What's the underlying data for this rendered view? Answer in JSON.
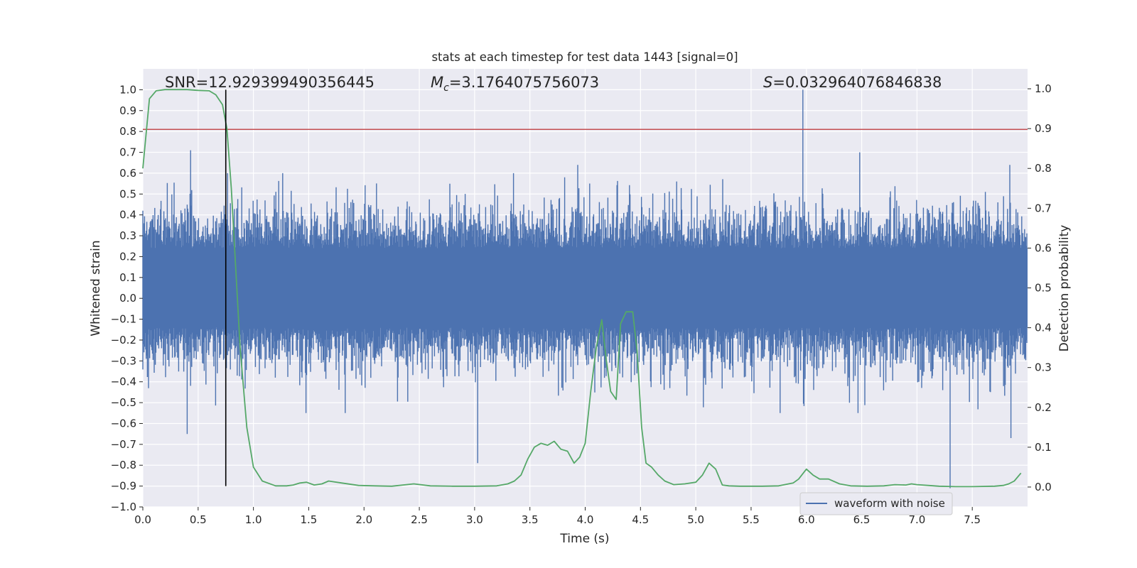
{
  "chart_data": {
    "type": "line",
    "title": "stats at each timestep for test data 1443 [signal=0]",
    "xlabel": "Time (s)",
    "ylabel_left": "Whitened strain",
    "ylabel_right": "Detection probability",
    "xlim": [
      0.0,
      8.0
    ],
    "ylim_left": [
      -1.0,
      1.1
    ],
    "ylim_right": [
      -0.05,
      1.05
    ],
    "x_ticks": [
      0.0,
      0.5,
      1.0,
      1.5,
      2.0,
      2.5,
      3.0,
      3.5,
      4.0,
      4.5,
      5.0,
      5.5,
      6.0,
      6.5,
      7.0,
      7.5
    ],
    "x_tick_labels": [
      "0.0",
      "0.5",
      "1.0",
      "1.5",
      "2.0",
      "2.5",
      "3.0",
      "3.5",
      "4.0",
      "4.5",
      "5.0",
      "5.5",
      "6.0",
      "6.5",
      "7.0",
      "7.5"
    ],
    "y_left_ticks": [
      1.0,
      0.9,
      0.8,
      0.7,
      0.6,
      0.5,
      0.4,
      0.3,
      0.2,
      0.1,
      0.0,
      -0.1,
      -0.2,
      -0.3,
      -0.4,
      -0.5,
      -0.6,
      -0.7,
      -0.8,
      -0.9,
      -1.0
    ],
    "y_left_tick_labels": [
      "1.0",
      "0.9",
      "0.8",
      "0.7",
      "0.6",
      "0.5",
      "0.4",
      "0.3",
      "0.2",
      "0.1",
      "0.0",
      "−0.1",
      "−0.2",
      "−0.3",
      "−0.4",
      "−0.5",
      "−0.6",
      "−0.7",
      "−0.8",
      "−0.9",
      "−1.0"
    ],
    "y_right_ticks": [
      1.0,
      0.9,
      0.8,
      0.7,
      0.6,
      0.5,
      0.4,
      0.3,
      0.2,
      0.1,
      0.0
    ],
    "y_right_tick_labels": [
      "1.0",
      "0.9",
      "0.8",
      "0.7",
      "0.6",
      "0.5",
      "0.4",
      "0.3",
      "0.2",
      "0.1",
      "0.0"
    ],
    "grid": true,
    "legend_position": "lower-right",
    "annotations": {
      "snr": "SNR=12.929399490356445",
      "mc_symbol": "M",
      "mc_subscript": "c",
      "mc_value": "=3.1764075756073",
      "s_symbol": "S",
      "s_value": "=0.032964076846838"
    },
    "series": [
      {
        "name": "waveform with noise",
        "axis": "left",
        "color": "#4c72b0",
        "description_envelope": {
          "core_band": [
            -0.14,
            0.24
          ],
          "typical_peak": [
            -0.55,
            0.6
          ]
        },
        "notable_spikes": [
          {
            "x": 0.43,
            "y": 0.71
          },
          {
            "x": 0.4,
            "y": -0.65
          },
          {
            "x": 3.03,
            "y": -0.79
          },
          {
            "x": 3.93,
            "y": 0.64
          },
          {
            "x": 5.97,
            "y": 1.0
          },
          {
            "x": 6.48,
            "y": 0.7
          },
          {
            "x": 7.3,
            "y": -0.91
          },
          {
            "x": 7.84,
            "y": 0.64
          },
          {
            "x": 7.85,
            "y": -0.67
          }
        ]
      },
      {
        "name": "",
        "axis": "right",
        "color": "#55a868",
        "x": [
          0.0,
          0.06,
          0.12,
          0.2,
          0.3,
          0.4,
          0.5,
          0.6,
          0.66,
          0.72,
          0.76,
          0.8,
          0.84,
          0.88,
          0.94,
          1.0,
          1.08,
          1.2,
          1.3,
          1.36,
          1.42,
          1.48,
          1.55,
          1.62,
          1.68,
          1.8,
          1.95,
          2.1,
          2.25,
          2.45,
          2.6,
          2.8,
          3.0,
          3.2,
          3.3,
          3.36,
          3.42,
          3.48,
          3.54,
          3.6,
          3.66,
          3.72,
          3.78,
          3.84,
          3.9,
          3.95,
          4.0,
          4.05,
          4.1,
          4.15,
          4.19,
          4.23,
          4.28,
          4.32,
          4.37,
          4.43,
          4.47,
          4.51,
          4.55,
          4.6,
          4.66,
          4.72,
          4.8,
          4.9,
          5.0,
          5.06,
          5.12,
          5.18,
          5.24,
          5.3,
          5.4,
          5.6,
          5.75,
          5.88,
          5.93,
          6.0,
          6.06,
          6.12,
          6.2,
          6.3,
          6.4,
          6.55,
          6.7,
          6.8,
          6.9,
          6.95,
          7.0,
          7.1,
          7.2,
          7.35,
          7.5,
          7.7,
          7.78,
          7.83,
          7.88,
          7.94
        ],
        "y": [
          0.8,
          0.975,
          0.995,
          0.998,
          0.998,
          0.998,
          0.996,
          0.995,
          0.985,
          0.96,
          0.9,
          0.75,
          0.55,
          0.35,
          0.15,
          0.05,
          0.015,
          0.003,
          0.003,
          0.005,
          0.01,
          0.012,
          0.005,
          0.008,
          0.015,
          0.01,
          0.004,
          0.003,
          0.002,
          0.008,
          0.003,
          0.002,
          0.002,
          0.003,
          0.008,
          0.015,
          0.03,
          0.07,
          0.1,
          0.11,
          0.105,
          0.115,
          0.095,
          0.09,
          0.06,
          0.075,
          0.11,
          0.24,
          0.35,
          0.42,
          0.32,
          0.24,
          0.22,
          0.41,
          0.44,
          0.44,
          0.34,
          0.15,
          0.06,
          0.05,
          0.03,
          0.015,
          0.006,
          0.008,
          0.012,
          0.03,
          0.06,
          0.045,
          0.005,
          0.003,
          0.002,
          0.002,
          0.003,
          0.01,
          0.02,
          0.045,
          0.03,
          0.02,
          0.02,
          0.008,
          0.003,
          0.002,
          0.003,
          0.006,
          0.005,
          0.008,
          0.006,
          0.004,
          0.002,
          0.001,
          0.001,
          0.002,
          0.004,
          0.008,
          0.015,
          0.035
        ]
      }
    ],
    "horizontal_line": {
      "axis": "left",
      "y": 0.81,
      "color": "#c44e52"
    },
    "vertical_line": {
      "x": 0.75,
      "y_from": -0.9,
      "y_to": 1.0,
      "color": "#000000"
    }
  }
}
